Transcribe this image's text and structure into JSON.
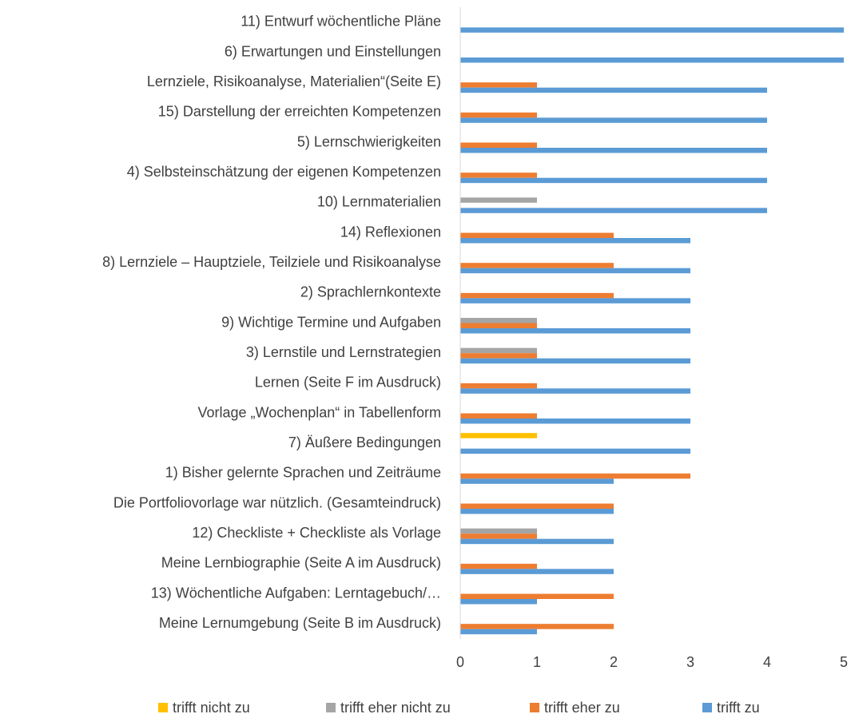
{
  "chart_data": {
    "type": "hbar",
    "categories": [
      "11) Entwurf wöchentliche Pläne",
      "6) Erwartungen und Einstellungen",
      "Lernziele, Risikoanalyse, Materialien“(Seite E)",
      "15) Darstellung der erreichten Kompetenzen",
      "5) Lernschwierigkeiten",
      "4) Selbsteinschätzung der eigenen Kompetenzen",
      "10) Lernmaterialien",
      "14) Reflexionen",
      "8) Lernziele – Hauptziele, Teilziele und Risikoanalyse",
      "2) Sprachlernkontexte",
      "9) Wichtige Termine und Aufgaben",
      "3) Lernstile und Lernstrategien",
      "Lernen (Seite F im Ausdruck)",
      "Vorlage „Wochenplan“ in Tabellenform",
      "7) Äußere Bedingungen",
      "1) Bisher gelernte Sprachen und Zeiträume",
      "Die Portfoliovorlage war nützlich. (Gesamteindruck)",
      "12) Checkliste + Checkliste als Vorlage",
      "Meine Lernbiographie (Seite A im Ausdruck)",
      "13) Wöchentliche Aufgaben: Lerntagebuch/…",
      "Meine Lernumgebung (Seite B im Ausdruck)"
    ],
    "series": [
      {
        "name": "trifft nicht zu",
        "color": "#ffc000",
        "values": [
          0,
          0,
          0,
          0,
          0,
          0,
          0,
          0,
          0,
          0,
          0,
          0,
          0,
          0,
          1,
          0,
          0,
          0,
          0,
          0,
          0
        ]
      },
      {
        "name": "trifft eher nicht zu",
        "color": "#a5a5a5",
        "values": [
          0,
          0,
          0,
          0,
          0,
          0,
          1,
          0,
          0,
          0,
          1,
          1,
          0,
          0,
          0,
          0,
          0,
          1,
          0,
          0,
          0
        ]
      },
      {
        "name": "trifft eher zu",
        "color": "#ed7d31",
        "values": [
          0,
          0,
          1,
          1,
          1,
          1,
          0,
          2,
          2,
          2,
          1,
          1,
          1,
          1,
          0,
          3,
          2,
          1,
          1,
          2,
          2
        ]
      },
      {
        "name": "trifft zu",
        "color": "#5b9bd5",
        "values": [
          5,
          5,
          4,
          4,
          4,
          4,
          4,
          3,
          3,
          3,
          3,
          3,
          3,
          3,
          3,
          2,
          2,
          2,
          2,
          1,
          1
        ]
      }
    ],
    "xlim": [
      0,
      5
    ],
    "xticks": [
      0,
      1,
      2,
      3,
      4,
      5
    ],
    "grid": false,
    "legend": "bottom"
  }
}
